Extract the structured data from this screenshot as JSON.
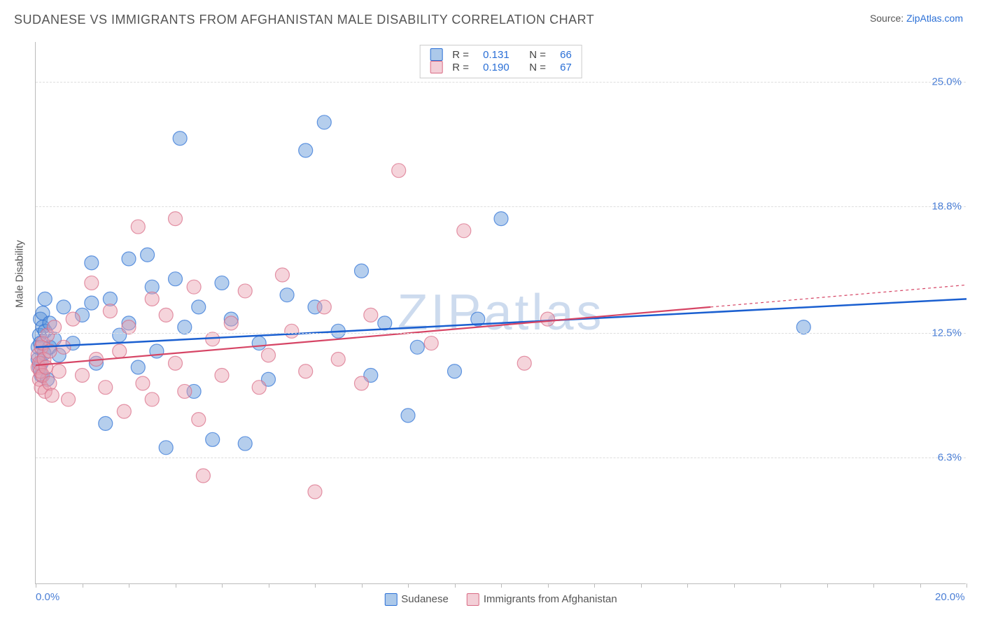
{
  "title": "SUDANESE VS IMMIGRANTS FROM AFGHANISTAN MALE DISABILITY CORRELATION CHART",
  "source_prefix": "Source: ",
  "source_link": "ZipAtlas.com",
  "yaxis_title": "Male Disability",
  "watermark_light": "ZIP",
  "watermark_bold": "atlas",
  "chart": {
    "type": "scatter",
    "xlim": [
      0,
      20
    ],
    "ylim": [
      0,
      27
    ],
    "x_ticks_minor": [
      0,
      1,
      2,
      3,
      4,
      5,
      6,
      7,
      8,
      9,
      10,
      11,
      12,
      13,
      14,
      15,
      16,
      17,
      18,
      19,
      20
    ],
    "x_tick_labels": [
      {
        "x": 0,
        "label": "0.0%"
      },
      {
        "x": 20,
        "label": "20.0%"
      }
    ],
    "y_gridlines": [
      6.3,
      12.5,
      18.8,
      25.0
    ],
    "y_tick_labels": [
      {
        "y": 6.3,
        "label": "6.3%"
      },
      {
        "y": 12.5,
        "label": "12.5%"
      },
      {
        "y": 18.8,
        "label": "18.8%"
      },
      {
        "y": 25.0,
        "label": "25.0%"
      }
    ],
    "marker_radius": 10,
    "marker_opacity": 0.45,
    "marker_stroke_width": 1.2,
    "background_color": "#ffffff",
    "series": [
      {
        "key": "sudanese",
        "label": "Sudanese",
        "color_fill": "#5a93d6",
        "color_stroke": "#2a6fd6",
        "R": "0.131",
        "N": "66",
        "trend": {
          "x1": 0,
          "y1": 11.8,
          "x2": 20,
          "y2": 14.2,
          "stroke": "#1a5fd0",
          "width": 2.5,
          "dash": "none"
        },
        "points": [
          [
            0.05,
            11.2
          ],
          [
            0.05,
            11.8
          ],
          [
            0.08,
            12.4
          ],
          [
            0.08,
            10.8
          ],
          [
            0.1,
            13.2
          ],
          [
            0.1,
            12.0
          ],
          [
            0.12,
            11.0
          ],
          [
            0.12,
            10.4
          ],
          [
            0.15,
            12.8
          ],
          [
            0.15,
            13.5
          ],
          [
            0.18,
            11.5
          ],
          [
            0.2,
            14.2
          ],
          [
            0.2,
            12.6
          ],
          [
            0.25,
            10.2
          ],
          [
            0.3,
            13.0
          ],
          [
            0.3,
            11.8
          ],
          [
            0.4,
            12.2
          ],
          [
            0.5,
            11.4
          ],
          [
            0.6,
            13.8
          ],
          [
            0.8,
            12.0
          ],
          [
            1.0,
            13.4
          ],
          [
            1.2,
            16.0
          ],
          [
            1.2,
            14.0
          ],
          [
            1.3,
            11.0
          ],
          [
            1.5,
            8.0
          ],
          [
            1.6,
            14.2
          ],
          [
            1.8,
            12.4
          ],
          [
            2.0,
            13.0
          ],
          [
            2.0,
            16.2
          ],
          [
            2.2,
            10.8
          ],
          [
            2.4,
            16.4
          ],
          [
            2.5,
            14.8
          ],
          [
            2.6,
            11.6
          ],
          [
            2.8,
            6.8
          ],
          [
            3.0,
            15.2
          ],
          [
            3.1,
            22.2
          ],
          [
            3.2,
            12.8
          ],
          [
            3.4,
            9.6
          ],
          [
            3.5,
            13.8
          ],
          [
            3.8,
            7.2
          ],
          [
            4.0,
            15.0
          ],
          [
            4.2,
            13.2
          ],
          [
            4.5,
            7.0
          ],
          [
            4.8,
            12.0
          ],
          [
            5.0,
            10.2
          ],
          [
            5.4,
            14.4
          ],
          [
            5.8,
            21.6
          ],
          [
            6.0,
            13.8
          ],
          [
            6.2,
            23.0
          ],
          [
            6.5,
            12.6
          ],
          [
            7.0,
            15.6
          ],
          [
            7.2,
            10.4
          ],
          [
            7.5,
            13.0
          ],
          [
            8.0,
            8.4
          ],
          [
            8.2,
            11.8
          ],
          [
            9.0,
            10.6
          ],
          [
            9.5,
            13.2
          ],
          [
            10.0,
            18.2
          ],
          [
            16.5,
            12.8
          ]
        ]
      },
      {
        "key": "afghanistan",
        "label": "Immigrants from Afghanistan",
        "color_fill": "#e89fb0",
        "color_stroke": "#d96a84",
        "R": "0.190",
        "N": "67",
        "trend": {
          "x1": 0,
          "y1": 10.9,
          "x2": 14.5,
          "y2": 13.8,
          "stroke": "#d64565",
          "width": 2.2,
          "dash": "none"
        },
        "trend_dash": {
          "x1": 14.5,
          "y1": 13.8,
          "x2": 20,
          "y2": 14.9,
          "stroke": "#d64565",
          "width": 1.2,
          "dash": "4,4"
        },
        "points": [
          [
            0.05,
            10.8
          ],
          [
            0.05,
            11.4
          ],
          [
            0.08,
            10.2
          ],
          [
            0.08,
            11.0
          ],
          [
            0.1,
            10.6
          ],
          [
            0.12,
            11.8
          ],
          [
            0.12,
            9.8
          ],
          [
            0.15,
            10.4
          ],
          [
            0.15,
            12.0
          ],
          [
            0.18,
            11.2
          ],
          [
            0.2,
            9.6
          ],
          [
            0.22,
            10.8
          ],
          [
            0.25,
            12.4
          ],
          [
            0.3,
            10.0
          ],
          [
            0.3,
            11.6
          ],
          [
            0.35,
            9.4
          ],
          [
            0.4,
            12.8
          ],
          [
            0.5,
            10.6
          ],
          [
            0.6,
            11.8
          ],
          [
            0.7,
            9.2
          ],
          [
            0.8,
            13.2
          ],
          [
            1.0,
            10.4
          ],
          [
            1.2,
            15.0
          ],
          [
            1.3,
            11.2
          ],
          [
            1.5,
            9.8
          ],
          [
            1.6,
            13.6
          ],
          [
            1.8,
            11.6
          ],
          [
            1.9,
            8.6
          ],
          [
            2.0,
            12.8
          ],
          [
            2.2,
            17.8
          ],
          [
            2.3,
            10.0
          ],
          [
            2.5,
            14.2
          ],
          [
            2.5,
            9.2
          ],
          [
            2.8,
            13.4
          ],
          [
            3.0,
            18.2
          ],
          [
            3.0,
            11.0
          ],
          [
            3.2,
            9.6
          ],
          [
            3.4,
            14.8
          ],
          [
            3.5,
            8.2
          ],
          [
            3.6,
            5.4
          ],
          [
            3.8,
            12.2
          ],
          [
            4.0,
            10.4
          ],
          [
            4.2,
            13.0
          ],
          [
            4.5,
            14.6
          ],
          [
            4.8,
            9.8
          ],
          [
            5.0,
            11.4
          ],
          [
            5.3,
            15.4
          ],
          [
            5.5,
            12.6
          ],
          [
            5.8,
            10.6
          ],
          [
            6.0,
            4.6
          ],
          [
            6.2,
            13.8
          ],
          [
            6.5,
            11.2
          ],
          [
            7.0,
            10.0
          ],
          [
            7.2,
            13.4
          ],
          [
            7.8,
            20.6
          ],
          [
            8.5,
            12.0
          ],
          [
            9.2,
            17.6
          ],
          [
            10.5,
            11.0
          ],
          [
            11.0,
            13.2
          ]
        ]
      }
    ]
  },
  "legend_top": {
    "R_label": "R =",
    "N_label": "N ="
  }
}
